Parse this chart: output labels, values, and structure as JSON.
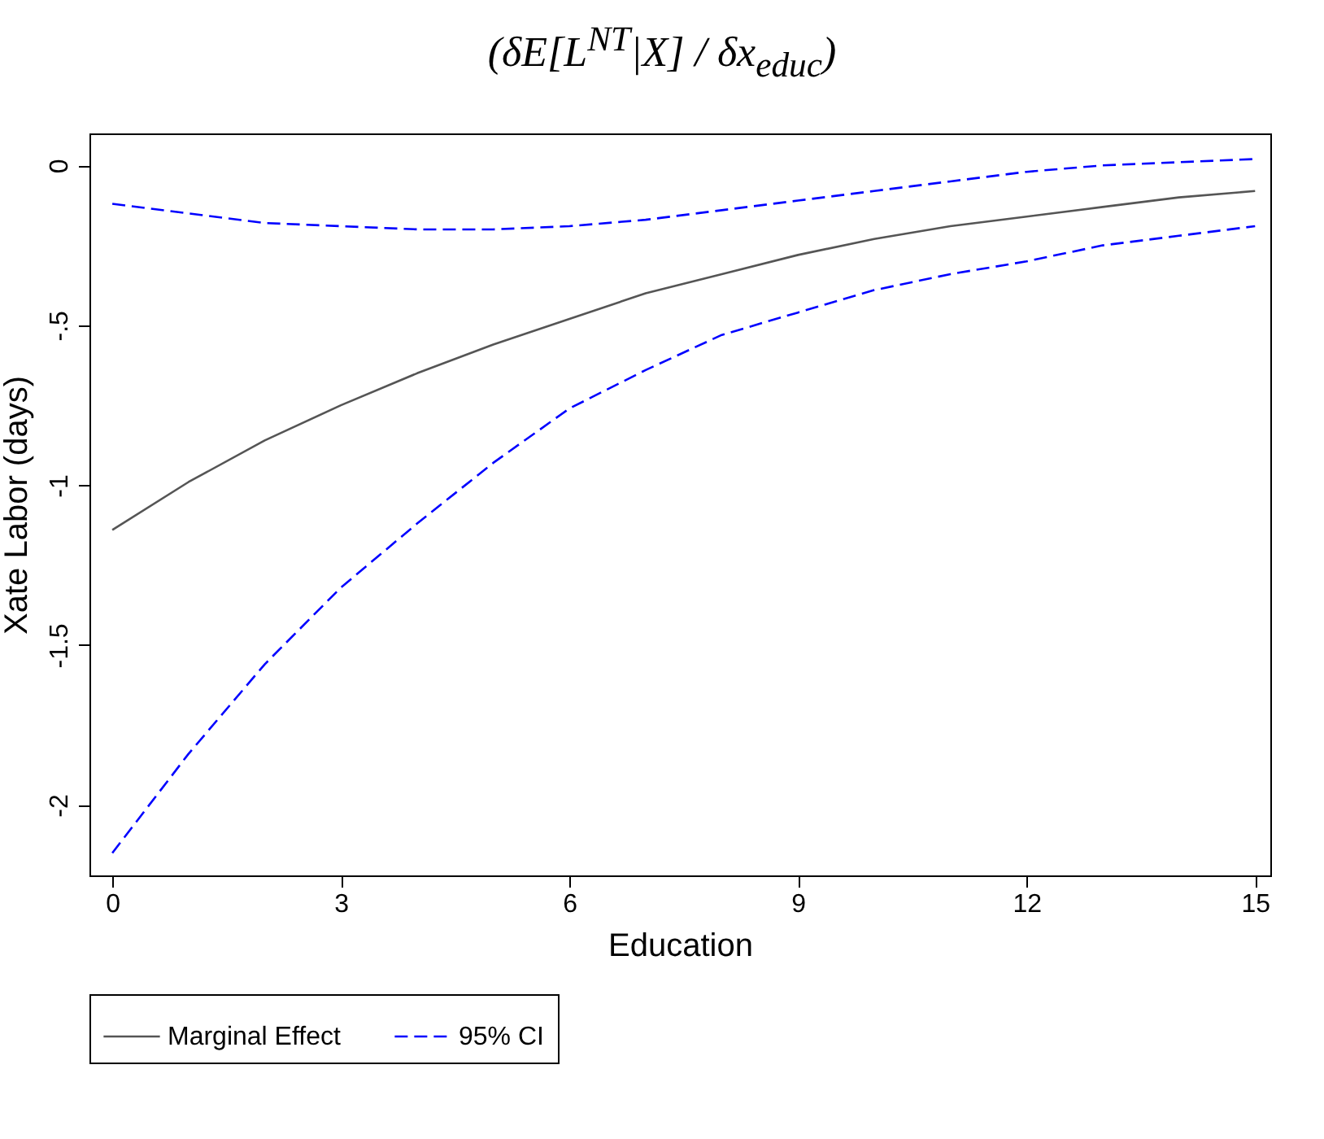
{
  "chart_data": {
    "type": "line",
    "title": "(δE[L$^{NT}$|X] / δx$_{educ}$)",
    "xlabel": "Education",
    "ylabel": "Xate Labor (days)",
    "x": [
      0,
      1,
      2,
      3,
      4,
      5,
      6,
      7,
      8,
      9,
      10,
      11,
      12,
      13,
      14,
      15
    ],
    "series": [
      {
        "name": "Marginal Effect",
        "color": "#555555",
        "line_style": "solid",
        "values": [
          -1.14,
          -0.99,
          -0.86,
          -0.75,
          -0.65,
          -0.56,
          -0.48,
          -0.4,
          -0.34,
          -0.28,
          -0.23,
          -0.19,
          -0.16,
          -0.13,
          -0.1,
          -0.08
        ]
      },
      {
        "name": "95% CI",
        "color": "#0000ff",
        "line_style": "dashed",
        "values": [
          -0.12,
          -0.15,
          -0.18,
          -0.19,
          -0.2,
          -0.2,
          -0.19,
          -0.17,
          -0.14,
          -0.11,
          -0.08,
          -0.05,
          -0.02,
          0.0,
          0.01,
          0.02
        ]
      },
      {
        "color": "#0000ff",
        "line_style": "dashed",
        "values": [
          -2.15,
          -1.84,
          -1.56,
          -1.32,
          -1.12,
          -0.93,
          -0.76,
          -0.64,
          -0.53,
          -0.46,
          -0.39,
          -0.34,
          -0.3,
          -0.25,
          -0.22,
          -0.19
        ]
      }
    ],
    "xlim": [
      -0.3,
      15.2
    ],
    "xticks": [
      0,
      3,
      6,
      9,
      12,
      15
    ],
    "ylim": [
      -2.22,
      0.1
    ],
    "yticks": [
      {
        "value": 0,
        "label": "0"
      },
      {
        "value": -0.5,
        "label": "-.5"
      },
      {
        "value": -1,
        "label": "-1"
      },
      {
        "value": -1.5,
        "label": "-1.5"
      },
      {
        "value": -2,
        "label": "-2"
      }
    ],
    "grid": false,
    "legend": "bottom"
  }
}
